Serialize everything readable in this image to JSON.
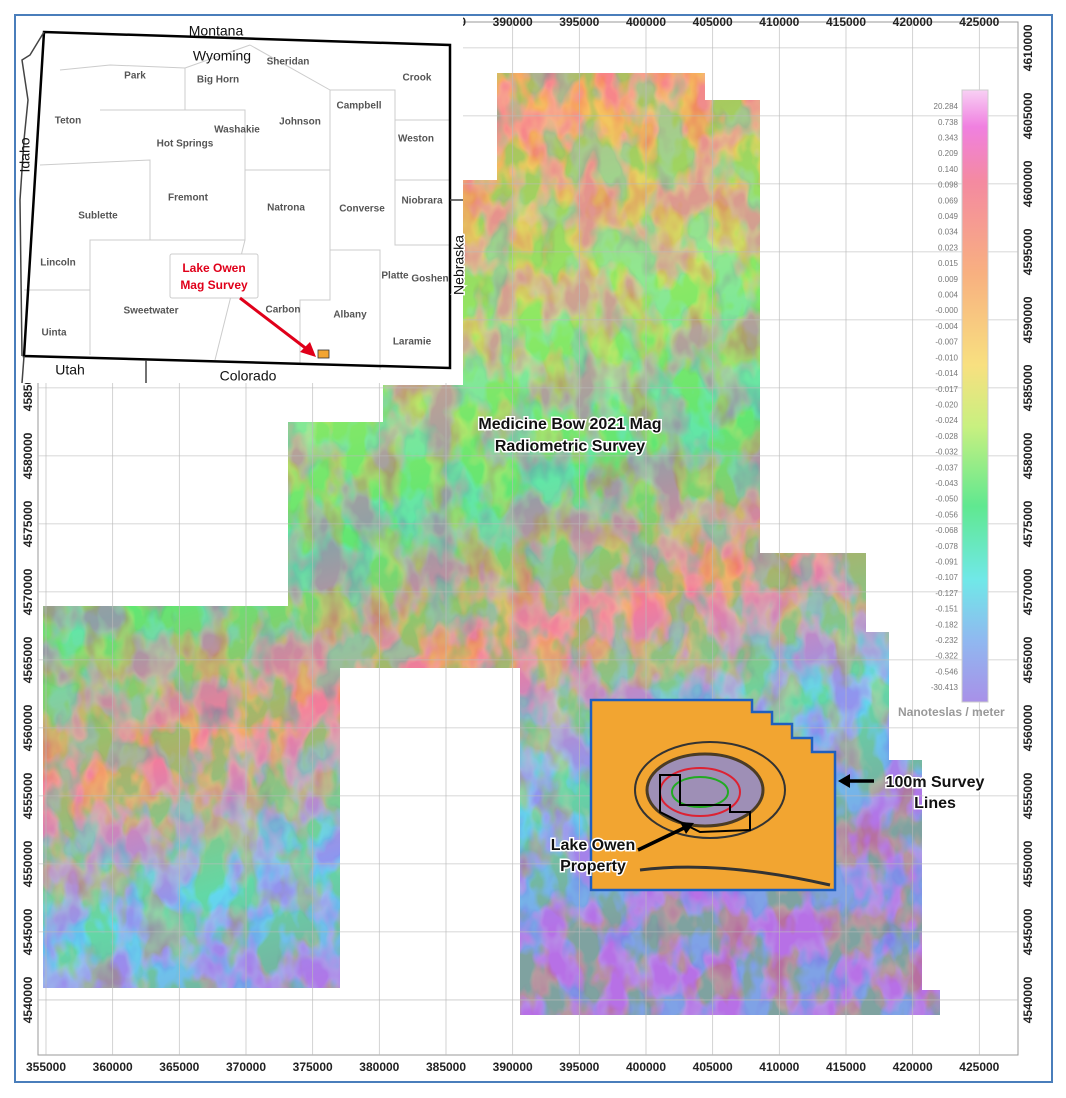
{
  "map": {
    "xlim": [
      354400,
      427900
    ],
    "ylim": [
      4535950,
      4611900
    ],
    "xticks": [
      355000,
      360000,
      365000,
      370000,
      375000,
      380000,
      385000,
      390000,
      395000,
      400000,
      405000,
      410000,
      415000,
      420000,
      425000
    ],
    "yticks": [
      4540000,
      4545000,
      4550000,
      4555000,
      4560000,
      4565000,
      4570000,
      4575000,
      4580000,
      4585000,
      4590000,
      4595000,
      4600000,
      4605000,
      4610000
    ],
    "grid": true
  },
  "colorbar": {
    "labels": [
      "20.284",
      "0.738",
      "0.343",
      "0.209",
      "0.140",
      "0.098",
      "0.069",
      "0.049",
      "0.034",
      "0.023",
      "0.015",
      "0.009",
      "0.004",
      "-0.000",
      "-0.004",
      "-0.007",
      "-0.010",
      "-0.014",
      "-0.017",
      "-0.020",
      "-0.024",
      "-0.028",
      "-0.032",
      "-0.037",
      "-0.043",
      "-0.050",
      "-0.056",
      "-0.068",
      "-0.078",
      "-0.091",
      "-0.107",
      "-0.127",
      "-0.151",
      "-0.182",
      "-0.232",
      "-0.322",
      "-0.546",
      "-30.413"
    ],
    "unit": "Nanoteslas / meter"
  },
  "annotations": {
    "survey": [
      "Medicine Bow 2021 Mag",
      "Radiometric Survey"
    ],
    "lines": [
      "100m Survey",
      "Lines"
    ],
    "property": [
      "Lake Owen",
      "Property"
    ]
  },
  "inset": {
    "labels": [
      "Montana",
      "Wyoming",
      "Sheridan",
      "Park",
      "Big Horn",
      "Crook",
      "Campbell",
      "Teton",
      "Johnson",
      "Washakie",
      "Weston",
      "Hot Springs",
      "Idaho",
      "Fremont",
      "Natrona",
      "Converse",
      "Niobrara",
      "Sublette",
      "Nebraska",
      "Lincoln",
      "Platte",
      "Goshen",
      "Sweetwater",
      "Carbon",
      "Albany",
      "Uinta",
      "Laramie",
      "Utah",
      "Colorado"
    ],
    "callout": [
      "Lake Owen",
      "Mag Survey"
    ]
  }
}
